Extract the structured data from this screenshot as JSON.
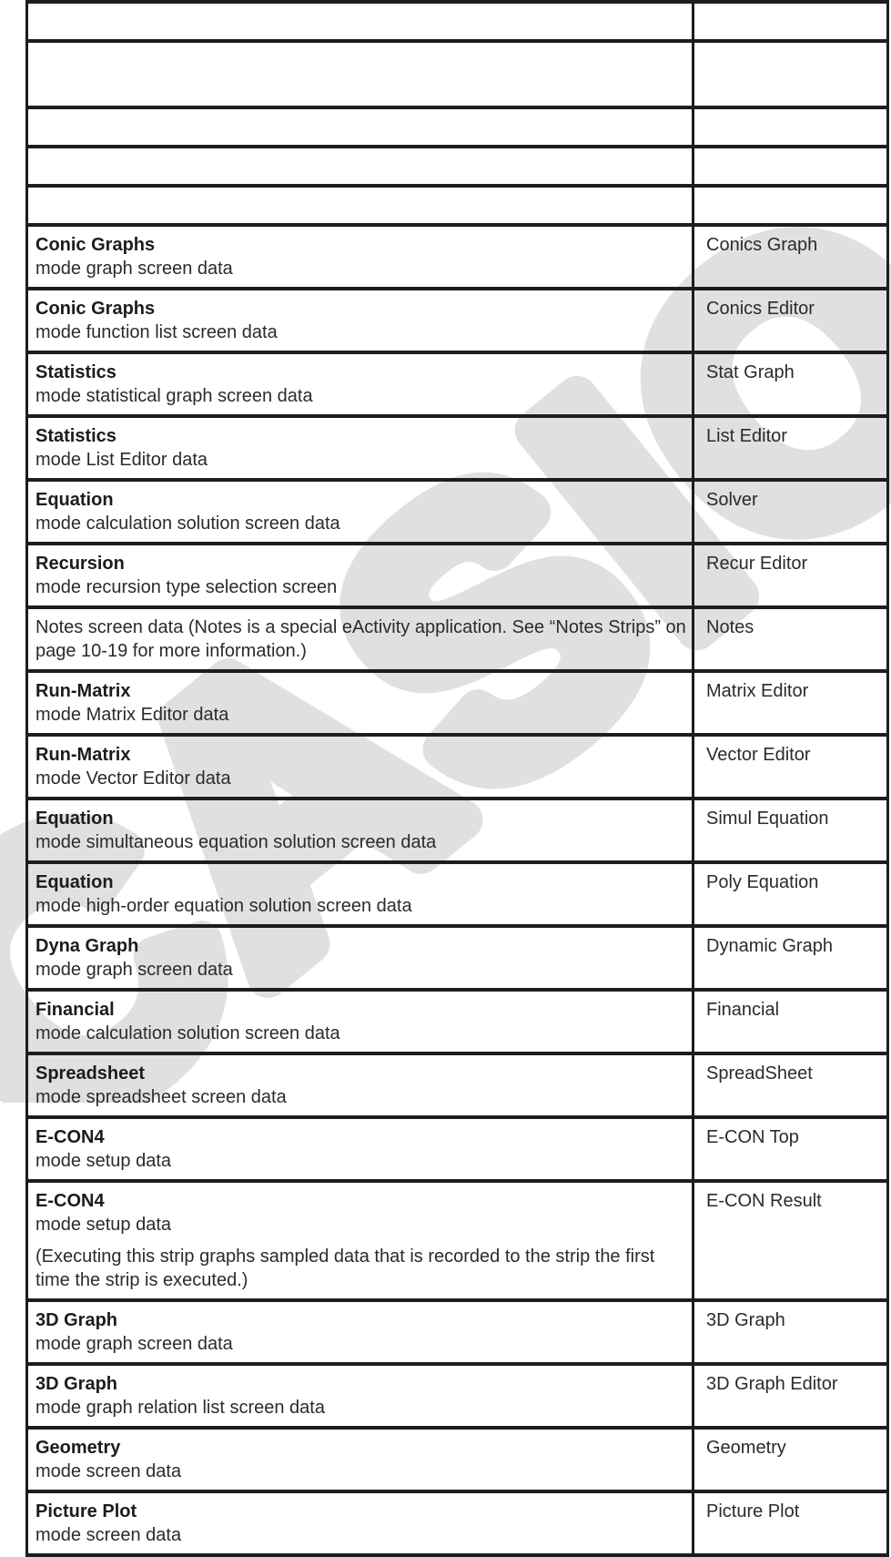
{
  "watermark": {
    "text": "CASIO",
    "color": "#e0e0e0"
  },
  "colors": {
    "border": "#1d1d1d",
    "text": "#2b2b2b"
  },
  "table": {
    "empty_rows": [
      43,
      73,
      43,
      43,
      43
    ],
    "rows": [
      {
        "segments": [
          {
            "text": "Conic Graphs",
            "bold": true
          },
          {
            "text": " mode graph screen data",
            "bold": false
          }
        ],
        "strip_name": "Conics Graph"
      },
      {
        "segments": [
          {
            "text": "Conic Graphs",
            "bold": true
          },
          {
            "text": " mode function list screen data",
            "bold": false
          }
        ],
        "strip_name": "Conics Editor"
      },
      {
        "segments": [
          {
            "text": "Statistics",
            "bold": true
          },
          {
            "text": " mode statistical graph screen data",
            "bold": false
          }
        ],
        "strip_name": "Stat Graph"
      },
      {
        "segments": [
          {
            "text": "Statistics",
            "bold": true
          },
          {
            "text": " mode List Editor data",
            "bold": false
          }
        ],
        "strip_name": "List Editor"
      },
      {
        "segments": [
          {
            "text": "Equation",
            "bold": true
          },
          {
            "text": " mode calculation solution screen data",
            "bold": false
          }
        ],
        "strip_name": "Solver"
      },
      {
        "segments": [
          {
            "text": "Recursion",
            "bold": true
          },
          {
            "text": " mode recursion type selection screen",
            "bold": false
          }
        ],
        "strip_name": "Recur Editor"
      },
      {
        "segments": [
          {
            "text": "Notes screen data (Notes is a special eActivity application. See “Notes Strips” on page 10-19 for more information.)",
            "bold": false
          }
        ],
        "strip_name": "Notes"
      },
      {
        "segments": [
          {
            "text": "Run-Matrix",
            "bold": true
          },
          {
            "text": " mode Matrix Editor data",
            "bold": false
          }
        ],
        "strip_name": "Matrix Editor"
      },
      {
        "segments": [
          {
            "text": "Run-Matrix",
            "bold": true
          },
          {
            "text": " mode Vector Editor data",
            "bold": false
          }
        ],
        "strip_name": "Vector Editor"
      },
      {
        "segments": [
          {
            "text": "Equation",
            "bold": true
          },
          {
            "text": " mode simultaneous equation solution screen data",
            "bold": false
          }
        ],
        "strip_name": "Simul Equation"
      },
      {
        "segments": [
          {
            "text": "Equation",
            "bold": true
          },
          {
            "text": " mode high-order equation solution screen data",
            "bold": false
          }
        ],
        "strip_name": "Poly Equation"
      },
      {
        "segments": [
          {
            "text": "Dyna Graph",
            "bold": true
          },
          {
            "text": " mode graph screen data",
            "bold": false
          }
        ],
        "strip_name": "Dynamic Graph"
      },
      {
        "segments": [
          {
            "text": "Financial",
            "bold": true
          },
          {
            "text": " mode calculation solution screen data",
            "bold": false
          }
        ],
        "strip_name": "Financial"
      },
      {
        "segments": [
          {
            "text": "Spreadsheet",
            "bold": true
          },
          {
            "text": " mode spreadsheet screen data",
            "bold": false
          }
        ],
        "strip_name": "SpreadSheet"
      },
      {
        "segments": [
          {
            "text": "E-CON4",
            "bold": true
          },
          {
            "text": " mode setup data",
            "bold": false
          }
        ],
        "strip_name": "E-CON Top"
      },
      {
        "segments": [
          {
            "text": "E-CON4",
            "bold": true
          },
          {
            "text": " mode setup data",
            "bold": false
          },
          {
            "text": "(Executing this strip graphs sampled data that is recorded to the strip the first time the strip is executed.)",
            "bold": false,
            "new_paragraph": true
          }
        ],
        "strip_name": "E-CON Result"
      },
      {
        "segments": [
          {
            "text": "3D Graph",
            "bold": true
          },
          {
            "text": " mode graph screen data",
            "bold": false
          }
        ],
        "strip_name": "3D Graph"
      },
      {
        "segments": [
          {
            "text": "3D Graph",
            "bold": true
          },
          {
            "text": " mode graph relation list screen data",
            "bold": false
          }
        ],
        "strip_name": "3D Graph Editor"
      },
      {
        "segments": [
          {
            "text": "Geometry",
            "bold": true
          },
          {
            "text": " mode screen data",
            "bold": false
          }
        ],
        "strip_name": "Geometry"
      },
      {
        "segments": [
          {
            "text": "Picture Plot",
            "bold": true
          },
          {
            "text": " mode screen data",
            "bold": false
          }
        ],
        "strip_name": "Picture Plot"
      }
    ]
  }
}
